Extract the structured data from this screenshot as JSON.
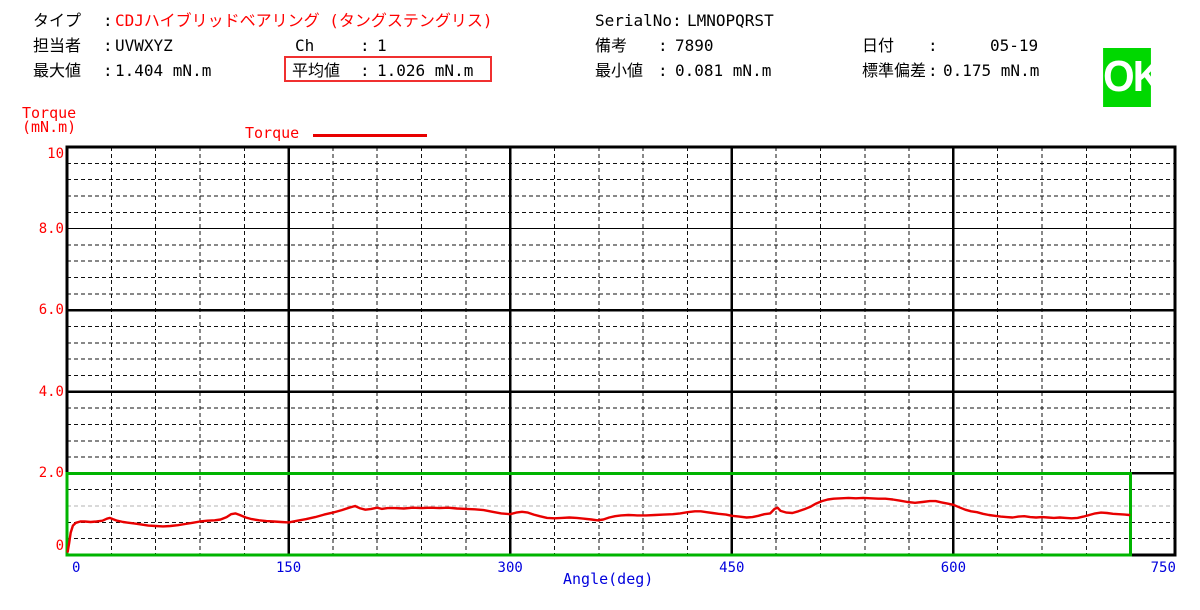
{
  "header": {
    "colon": ":",
    "type_label": "タイプ",
    "type_value": "CDJハイブリッドベアリング (タングステングリス)",
    "operator_label": "担当者",
    "operator_value": "UVWXYZ",
    "ch_label": "Ch",
    "ch_value": "1",
    "max_label": "最大値",
    "max_value": "1.404 mN.m",
    "avg_label": "平均値",
    "avg_value": "1.026 mN.m",
    "serial_label": "SerialNo:",
    "serial_value": "LMNOPQRST",
    "note_label": "備考",
    "note_value": "7890",
    "min_label": "最小値",
    "min_value": "0.081 mN.m",
    "date_label": "日付",
    "date_value": "05-19",
    "stddev_label": "標準偏差",
    "stddev_value": "0.175 mN.m",
    "result_badge": "OK"
  },
  "colors": {
    "accent_red": "#ff0000",
    "curve_red": "#e80000",
    "axis_blue": "#0000dd",
    "limit_green": "#00b400",
    "badge_green": "#00d800",
    "grid_black": "#111111",
    "grid_gray": "#b3b3b3"
  },
  "chart_data": {
    "type": "line",
    "title": "",
    "xlabel": "Angle(deg)",
    "ylabel": "Torque (mN.m)",
    "ylabel_lines": [
      "Torque",
      "(mN.m)"
    ],
    "legend": [
      "Torque"
    ],
    "legend_position": "top",
    "grid": true,
    "xlim": [
      0,
      750
    ],
    "ylim": [
      0,
      10
    ],
    "x_major_ticks": [
      0,
      150,
      300,
      450,
      600,
      750
    ],
    "y_ticks": [
      {
        "v": 10,
        "label": "10"
      },
      {
        "v": 8,
        "label": "8.0"
      },
      {
        "v": 6,
        "label": "6.0"
      },
      {
        "v": 4,
        "label": "4.0"
      },
      {
        "v": 2,
        "label": "2.0"
      },
      {
        "v": 0,
        "label": "0"
      }
    ],
    "x_minor_step": 30,
    "y_minor_step": 0.4,
    "thin_major_y": [
      8
    ],
    "special_minor_y": {
      "value": 1.2,
      "color": "#b3b3b3"
    },
    "limit_box": {
      "x0": 0,
      "x1": 720,
      "y0": 0,
      "y1": 2.0,
      "color": "#00b400"
    },
    "series": [
      {
        "name": "Torque",
        "color": "#e80000",
        "points": [
          [
            0.5,
            0.08
          ],
          [
            1.5,
            0.3
          ],
          [
            2.5,
            0.55
          ],
          [
            4,
            0.72
          ],
          [
            6,
            0.79
          ],
          [
            9,
            0.82
          ],
          [
            12,
            0.82
          ],
          [
            16,
            0.81
          ],
          [
            20,
            0.82
          ],
          [
            24,
            0.84
          ],
          [
            27,
            0.89
          ],
          [
            29,
            0.91
          ],
          [
            31,
            0.88
          ],
          [
            34,
            0.84
          ],
          [
            38,
            0.81
          ],
          [
            42,
            0.79
          ],
          [
            46,
            0.77
          ],
          [
            50,
            0.75
          ],
          [
            55,
            0.72
          ],
          [
            60,
            0.71
          ],
          [
            65,
            0.7
          ],
          [
            70,
            0.71
          ],
          [
            75,
            0.73
          ],
          [
            80,
            0.76
          ],
          [
            85,
            0.79
          ],
          [
            90,
            0.82
          ],
          [
            95,
            0.84
          ],
          [
            100,
            0.85
          ],
          [
            104,
            0.87
          ],
          [
            108,
            0.93
          ],
          [
            111,
            1.0
          ],
          [
            114,
            1.02
          ],
          [
            117,
            0.98
          ],
          [
            121,
            0.92
          ],
          [
            125,
            0.88
          ],
          [
            130,
            0.85
          ],
          [
            135,
            0.83
          ],
          [
            140,
            0.82
          ],
          [
            145,
            0.81
          ],
          [
            150,
            0.8
          ],
          [
            156,
            0.84
          ],
          [
            162,
            0.88
          ],
          [
            168,
            0.93
          ],
          [
            174,
            0.99
          ],
          [
            180,
            1.04
          ],
          [
            186,
            1.1
          ],
          [
            191,
            1.16
          ],
          [
            195,
            1.2
          ],
          [
            198,
            1.15
          ],
          [
            202,
            1.11
          ],
          [
            206,
            1.13
          ],
          [
            210,
            1.16
          ],
          [
            213,
            1.13
          ],
          [
            217,
            1.15
          ],
          [
            222,
            1.15
          ],
          [
            228,
            1.14
          ],
          [
            234,
            1.16
          ],
          [
            240,
            1.15
          ],
          [
            246,
            1.16
          ],
          [
            252,
            1.15
          ],
          [
            258,
            1.16
          ],
          [
            264,
            1.14
          ],
          [
            270,
            1.13
          ],
          [
            276,
            1.12
          ],
          [
            282,
            1.1
          ],
          [
            288,
            1.06
          ],
          [
            294,
            1.02
          ],
          [
            300,
            1.0
          ],
          [
            304,
            1.04
          ],
          [
            308,
            1.06
          ],
          [
            312,
            1.04
          ],
          [
            316,
            0.99
          ],
          [
            320,
            0.95
          ],
          [
            325,
            0.91
          ],
          [
            330,
            0.9
          ],
          [
            335,
            0.91
          ],
          [
            340,
            0.92
          ],
          [
            345,
            0.91
          ],
          [
            350,
            0.89
          ],
          [
            355,
            0.87
          ],
          [
            359,
            0.85
          ],
          [
            363,
            0.87
          ],
          [
            367,
            0.92
          ],
          [
            371,
            0.95
          ],
          [
            375,
            0.97
          ],
          [
            380,
            0.98
          ],
          [
            386,
            0.97
          ],
          [
            392,
            0.97
          ],
          [
            398,
            0.98
          ],
          [
            404,
            0.99
          ],
          [
            410,
            1.0
          ],
          [
            415,
            1.02
          ],
          [
            420,
            1.05
          ],
          [
            425,
            1.07
          ],
          [
            429,
            1.07
          ],
          [
            433,
            1.05
          ],
          [
            437,
            1.03
          ],
          [
            441,
            1.01
          ],
          [
            446,
            0.99
          ],
          [
            450,
            0.96
          ],
          [
            455,
            0.94
          ],
          [
            460,
            0.92
          ],
          [
            464,
            0.93
          ],
          [
            468,
            0.96
          ],
          [
            472,
            1.0
          ],
          [
            476,
            1.02
          ],
          [
            479,
            1.13
          ],
          [
            481,
            1.16
          ],
          [
            483,
            1.08
          ],
          [
            487,
            1.04
          ],
          [
            491,
            1.03
          ],
          [
            495,
            1.07
          ],
          [
            499,
            1.12
          ],
          [
            503,
            1.18
          ],
          [
            507,
            1.26
          ],
          [
            511,
            1.32
          ],
          [
            515,
            1.36
          ],
          [
            519,
            1.38
          ],
          [
            524,
            1.39
          ],
          [
            529,
            1.4
          ],
          [
            534,
            1.39
          ],
          [
            539,
            1.4
          ],
          [
            544,
            1.39
          ],
          [
            549,
            1.38
          ],
          [
            554,
            1.38
          ],
          [
            559,
            1.36
          ],
          [
            564,
            1.33
          ],
          [
            569,
            1.3
          ],
          [
            574,
            1.28
          ],
          [
            579,
            1.3
          ],
          [
            584,
            1.32
          ],
          [
            588,
            1.32
          ],
          [
            592,
            1.29
          ],
          [
            596,
            1.26
          ],
          [
            600,
            1.23
          ],
          [
            604,
            1.17
          ],
          [
            608,
            1.11
          ],
          [
            612,
            1.07
          ],
          [
            616,
            1.05
          ],
          [
            620,
            1.01
          ],
          [
            624,
            0.98
          ],
          [
            628,
            0.96
          ],
          [
            632,
            0.94
          ],
          [
            636,
            0.93
          ],
          [
            640,
            0.92
          ],
          [
            644,
            0.94
          ],
          [
            648,
            0.95
          ],
          [
            652,
            0.93
          ],
          [
            656,
            0.92
          ],
          [
            660,
            0.93
          ],
          [
            664,
            0.92
          ],
          [
            668,
            0.91
          ],
          [
            672,
            0.92
          ],
          [
            676,
            0.91
          ],
          [
            680,
            0.9
          ],
          [
            684,
            0.91
          ],
          [
            688,
            0.94
          ],
          [
            692,
            0.98
          ],
          [
            696,
            1.02
          ],
          [
            700,
            1.04
          ],
          [
            704,
            1.03
          ],
          [
            708,
            1.01
          ],
          [
            712,
            1.0
          ],
          [
            716,
            0.99
          ],
          [
            719,
            0.98
          ]
        ]
      }
    ]
  }
}
